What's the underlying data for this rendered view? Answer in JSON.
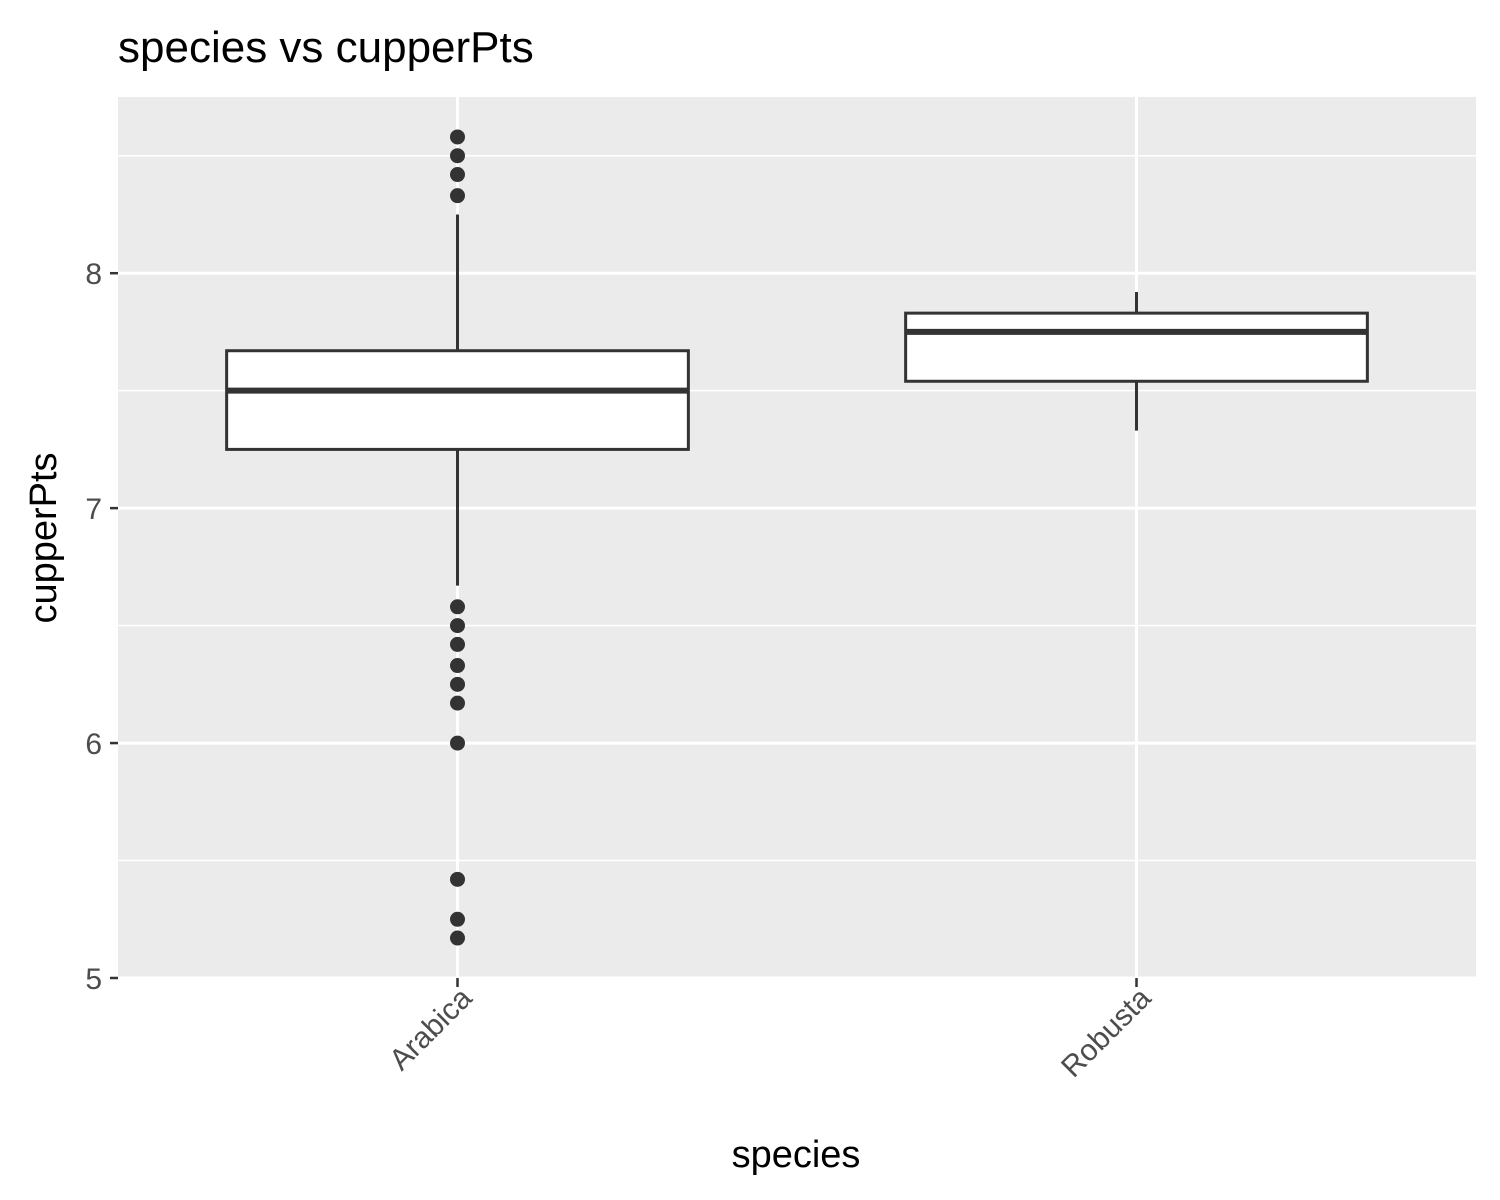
{
  "chart_data": {
    "type": "boxplot",
    "title": "species vs cupperPts",
    "xlabel": "species",
    "ylabel": "cupperPts",
    "categories": [
      "Arabica",
      "Robusta"
    ],
    "ylim": [
      5,
      8.75
    ],
    "yticks": [
      5,
      6,
      7,
      8
    ],
    "grid": true,
    "panel_color": "#ebebeb",
    "box_color": "#333333",
    "boxes": [
      {
        "category": "Arabica",
        "whisker_low": 6.67,
        "q1": 7.25,
        "median": 7.5,
        "q3": 7.67,
        "whisker_high": 8.25,
        "outliers": [
          8.58,
          8.5,
          8.42,
          8.33,
          6.58,
          6.5,
          6.42,
          6.33,
          6.25,
          6.17,
          6.0,
          5.42,
          5.25,
          5.17
        ]
      },
      {
        "category": "Robusta",
        "whisker_low": 7.33,
        "q1": 7.54,
        "median": 7.75,
        "q3": 7.83,
        "whisker_high": 7.92,
        "outliers": []
      }
    ]
  }
}
